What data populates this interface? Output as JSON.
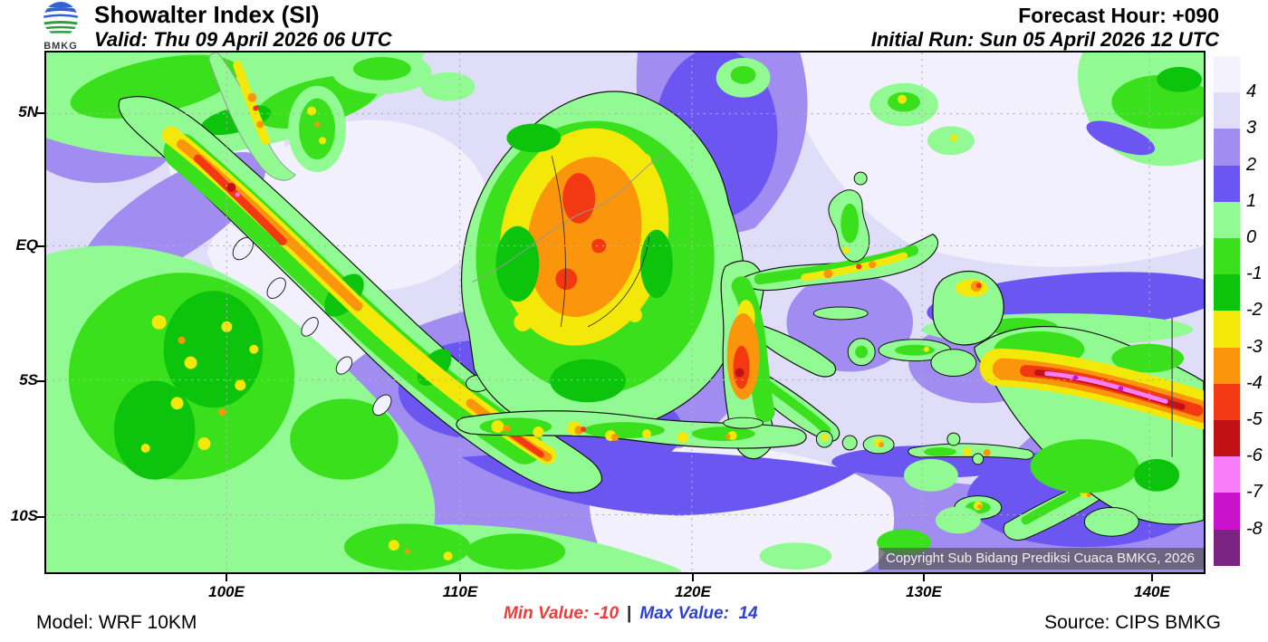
{
  "header": {
    "logo": "BMKG",
    "title": "Showalter Index (SI)",
    "valid": "Valid: Thu 09 April 2026 06 UTC",
    "forecast_hour": "Forecast Hour: +090",
    "initial_run": "Initial Run: Sun 05 April 2026 12 UTC"
  },
  "map": {
    "lat_labels": [
      "5N",
      "EQ",
      "5S",
      "10S"
    ],
    "lon_labels": [
      "100E",
      "110E",
      "120E",
      "130E",
      "140E"
    ],
    "copyright": "Copyright Sub Bidang Prediksi Cuaca BMKG, 2026"
  },
  "legend": {
    "labels": [
      "4",
      "3",
      "2",
      "1",
      "0",
      "-1",
      "-2",
      "-3",
      "-4",
      "-5",
      "-6",
      "-7",
      "-8"
    ],
    "colors": [
      "#f4f2fc",
      "#dfddf8",
      "#a18df2",
      "#6b56f2",
      "#92fa92",
      "#3be01d",
      "#0cc40c",
      "#f4e80b",
      "#fb950b",
      "#f23912",
      "#c11016",
      "#f97df9",
      "#ca12ca",
      "#7b2380"
    ]
  },
  "footer": {
    "model": "Model: WRF 10KM",
    "min_value": "Min Value: -10",
    "separator": "|",
    "max_value": "Max Value:  14",
    "source": "Source: CIPS BMKG"
  },
  "colors": {
    "min_text": "#f03b3b",
    "max_text": "#2b3fd9"
  }
}
